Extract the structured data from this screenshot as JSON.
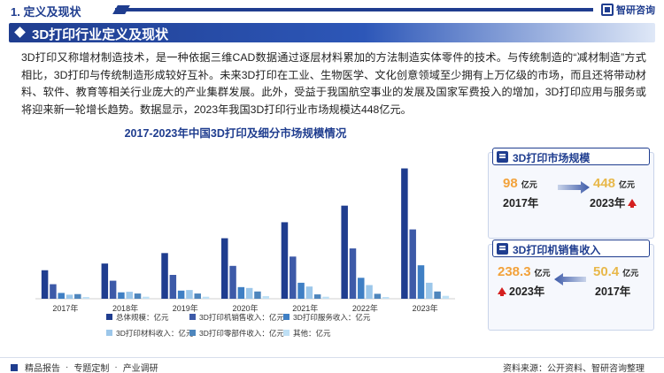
{
  "header": {
    "section": "1. 定义及现状",
    "logo_text": "智研咨询"
  },
  "title": "3D打印行业定义及现状",
  "paragraph": "3D打印又称增材制造技术，是一种依据三维CAD数据通过逐层材料累加的方法制造实体零件的技术。与传统制造的“减材制造”方式相比，3D打印与传统制造形成较好互补。未来3D打印在工业、生物医学、文化创意领域至少拥有上万亿级的市场，而且还将带动材料、软件、教育等相关行业庞大的产业集群发展。此外，受益于我国航空事业的发展及国家军费投入的增加，3D打印应用与服务或将迎来新一轮增长趋势。数据显示，2023年我国3D打印行业市场规模达448亿元。",
  "chart_data": {
    "type": "bar",
    "title": "2017-2023年中国3D打印及细分市场规模情况",
    "categories": [
      "2017年",
      "2018年",
      "2019年",
      "2020年",
      "2021年",
      "2022年",
      "2023年"
    ],
    "series": [
      {
        "name": "总体规模：亿元",
        "color": "#1f3d8f",
        "values": [
          98,
          121,
          157,
          208,
          263,
          320,
          448
        ]
      },
      {
        "name": "3D打印机销售收入：亿元",
        "color": "#3d5aa8",
        "values": [
          50,
          62,
          82,
          113,
          145,
          173,
          238.3
        ]
      },
      {
        "name": "3D打印服务收入：亿元",
        "color": "#3f7fc4",
        "values": [
          20,
          22,
          28,
          40,
          55,
          72,
          115
        ]
      },
      {
        "name": "3D打印材料收入：亿元",
        "color": "#9cc7ea",
        "values": [
          14,
          24,
          30,
          37,
          42,
          47,
          55
        ]
      },
      {
        "name": "3D打印零部件收入：亿元",
        "color": "#4e86bd",
        "values": [
          16,
          18,
          18,
          25,
          15,
          17,
          25
        ]
      },
      {
        "name": "其他：亿元",
        "color": "#bfe0f5",
        "values": [
          6,
          7,
          7,
          9,
          7,
          6,
          10
        ]
      }
    ],
    "ylim": [
      0,
      480
    ],
    "grid": false,
    "legend_position": "bottom"
  },
  "panels": {
    "market": {
      "title": "3D打印市场规模",
      "from_value": "98",
      "from_unit": "亿元",
      "from_year": "2017年",
      "to_value": "448",
      "to_unit": "亿元",
      "to_year": "2023年"
    },
    "sales": {
      "title": "3D打印机销售收入",
      "left_value": "238.3",
      "left_unit": "亿元",
      "left_year": "2023年",
      "right_value": "50.4",
      "right_unit": "亿元",
      "right_year": "2017年"
    }
  },
  "footer": {
    "items": [
      "精品报告",
      "专题定制",
      "产业调研"
    ],
    "sep": "·",
    "source": "资料来源：公开资料、智研咨询整理"
  },
  "colors": {
    "brand": "#1f3d8f",
    "accent_orange": "#f2a23b",
    "up_red": "#d42020"
  }
}
